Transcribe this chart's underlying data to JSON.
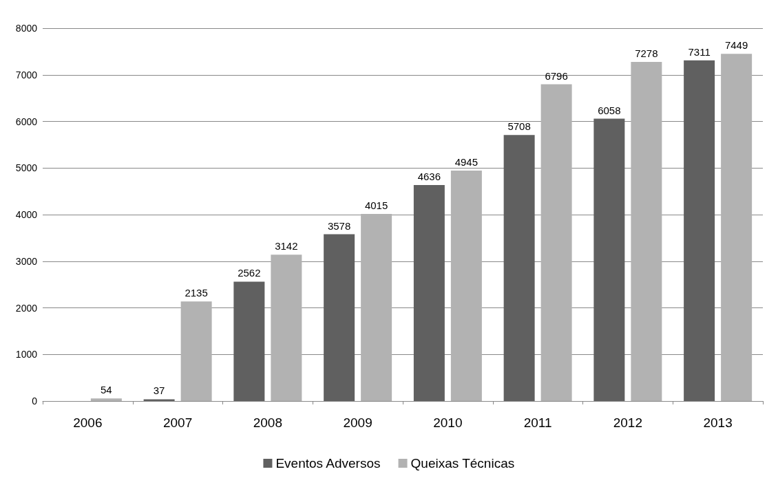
{
  "chart_data": {
    "type": "bar",
    "categories": [
      "2006",
      "2007",
      "2008",
      "2009",
      "2010",
      "2011",
      "2012",
      "2013"
    ],
    "series": [
      {
        "name": "Eventos Adversos",
        "color": "#606060",
        "values": [
          null,
          37,
          2562,
          3578,
          4636,
          5708,
          6058,
          7311
        ]
      },
      {
        "name": "Queixas Técnicas",
        "color": "#b2b2b2",
        "values": [
          54,
          2135,
          3142,
          4015,
          4945,
          6796,
          7278,
          7449
        ]
      }
    ],
    "ylim": [
      0,
      8000
    ],
    "yticks": [
      0,
      1000,
      2000,
      3000,
      4000,
      5000,
      6000,
      7000,
      8000
    ],
    "grid": "y",
    "legend": "bottom",
    "data_labels": true
  }
}
